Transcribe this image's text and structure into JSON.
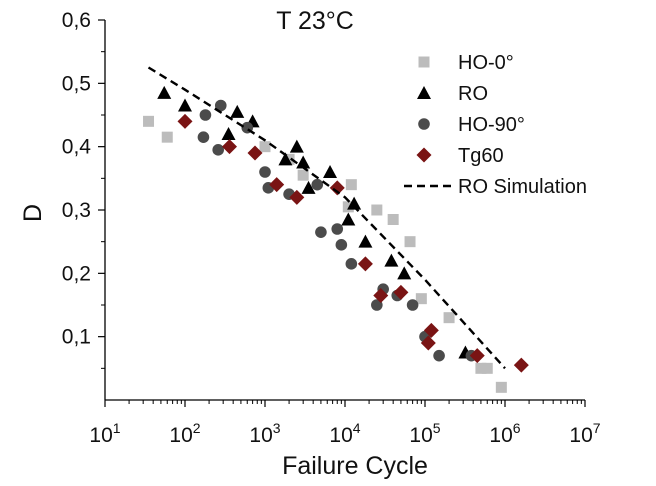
{
  "chart_data": {
    "type": "scatter",
    "title": "T 23°C",
    "xlabel": "Failure Cycle",
    "ylabel": "D",
    "xscale": "log",
    "xlim": [
      1,
      7
    ],
    "ylim": [
      0,
      0.6
    ],
    "x_ticks": [
      {
        "base": "10",
        "exp": "1"
      },
      {
        "base": "10",
        "exp": "2"
      },
      {
        "base": "10",
        "exp": "3"
      },
      {
        "base": "10",
        "exp": "4"
      },
      {
        "base": "10",
        "exp": "5"
      },
      {
        "base": "10",
        "exp": "6"
      },
      {
        "base": "10",
        "exp": "7"
      }
    ],
    "y_ticks": [
      {
        "value": 0.1,
        "label": "0,1"
      },
      {
        "value": 0.2,
        "label": "0,2"
      },
      {
        "value": 0.3,
        "label": "0,3"
      },
      {
        "value": 0.4,
        "label": "0,4"
      },
      {
        "value": 0.5,
        "label": "0,5"
      },
      {
        "value": 0.6,
        "label": "0,6"
      }
    ],
    "legend_position": "top-right",
    "series": [
      {
        "name": "HO-0°",
        "marker": "square",
        "color": "#bcbcbc",
        "points": [
          {
            "x": 35,
            "y": 0.44
          },
          {
            "x": 60,
            "y": 0.415
          },
          {
            "x": 1000,
            "y": 0.4
          },
          {
            "x": 2000,
            "y": 0.38
          },
          {
            "x": 3000,
            "y": 0.355
          },
          {
            "x": 12000,
            "y": 0.34
          },
          {
            "x": 11000,
            "y": 0.305
          },
          {
            "x": 25000,
            "y": 0.3
          },
          {
            "x": 40000,
            "y": 0.285
          },
          {
            "x": 65000,
            "y": 0.25
          },
          {
            "x": 90000,
            "y": 0.16
          },
          {
            "x": 200000,
            "y": 0.13
          },
          {
            "x": 500000,
            "y": 0.05
          },
          {
            "x": 600000,
            "y": 0.05
          },
          {
            "x": 900000,
            "y": 0.02
          }
        ]
      },
      {
        "name": "RO",
        "marker": "triangle",
        "color": "#000000",
        "points": [
          {
            "x": 55,
            "y": 0.485
          },
          {
            "x": 100,
            "y": 0.465
          },
          {
            "x": 350,
            "y": 0.42
          },
          {
            "x": 450,
            "y": 0.455
          },
          {
            "x": 700,
            "y": 0.44
          },
          {
            "x": 1800,
            "y": 0.38
          },
          {
            "x": 2500,
            "y": 0.4
          },
          {
            "x": 3000,
            "y": 0.375
          },
          {
            "x": 3500,
            "y": 0.335
          },
          {
            "x": 6500,
            "y": 0.36
          },
          {
            "x": 11000,
            "y": 0.285
          },
          {
            "x": 13000,
            "y": 0.31
          },
          {
            "x": 18000,
            "y": 0.25
          },
          {
            "x": 38000,
            "y": 0.22
          },
          {
            "x": 55000,
            "y": 0.2
          },
          {
            "x": 320000,
            "y": 0.075
          }
        ]
      },
      {
        "name": "HO-90°",
        "marker": "circle",
        "color": "#4b4b4b",
        "points": [
          {
            "x": 180,
            "y": 0.45
          },
          {
            "x": 280,
            "y": 0.465
          },
          {
            "x": 170,
            "y": 0.415
          },
          {
            "x": 260,
            "y": 0.395
          },
          {
            "x": 600,
            "y": 0.43
          },
          {
            "x": 1000,
            "y": 0.36
          },
          {
            "x": 1100,
            "y": 0.335
          },
          {
            "x": 2000,
            "y": 0.325
          },
          {
            "x": 4500,
            "y": 0.34
          },
          {
            "x": 5000,
            "y": 0.265
          },
          {
            "x": 8000,
            "y": 0.27
          },
          {
            "x": 9000,
            "y": 0.245
          },
          {
            "x": 12000,
            "y": 0.215
          },
          {
            "x": 25000,
            "y": 0.15
          },
          {
            "x": 30000,
            "y": 0.175
          },
          {
            "x": 45000,
            "y": 0.165
          },
          {
            "x": 70000,
            "y": 0.15
          },
          {
            "x": 100000,
            "y": 0.1
          },
          {
            "x": 150000,
            "y": 0.07
          },
          {
            "x": 380000,
            "y": 0.07
          }
        ]
      },
      {
        "name": "Tg60",
        "marker": "diamond",
        "color": "#7a1414",
        "points": [
          {
            "x": 100,
            "y": 0.44
          },
          {
            "x": 360,
            "y": 0.4
          },
          {
            "x": 750,
            "y": 0.39
          },
          {
            "x": 1400,
            "y": 0.34
          },
          {
            "x": 2500,
            "y": 0.32
          },
          {
            "x": 8000,
            "y": 0.335
          },
          {
            "x": 18000,
            "y": 0.215
          },
          {
            "x": 28000,
            "y": 0.165
          },
          {
            "x": 50000,
            "y": 0.17
          },
          {
            "x": 120000,
            "y": 0.11
          },
          {
            "x": 110000,
            "y": 0.09
          },
          {
            "x": 450000,
            "y": 0.07
          },
          {
            "x": 1600000,
            "y": 0.055
          }
        ]
      },
      {
        "name": "RO Simulation",
        "marker": "dashed-line",
        "color": "#000000",
        "points": [
          {
            "x": 35,
            "y": 0.525
          },
          {
            "x": 100,
            "y": 0.49
          },
          {
            "x": 1000,
            "y": 0.41
          },
          {
            "x": 10000,
            "y": 0.32
          },
          {
            "x": 100000,
            "y": 0.19
          },
          {
            "x": 1000000,
            "y": 0.05
          }
        ]
      }
    ]
  }
}
